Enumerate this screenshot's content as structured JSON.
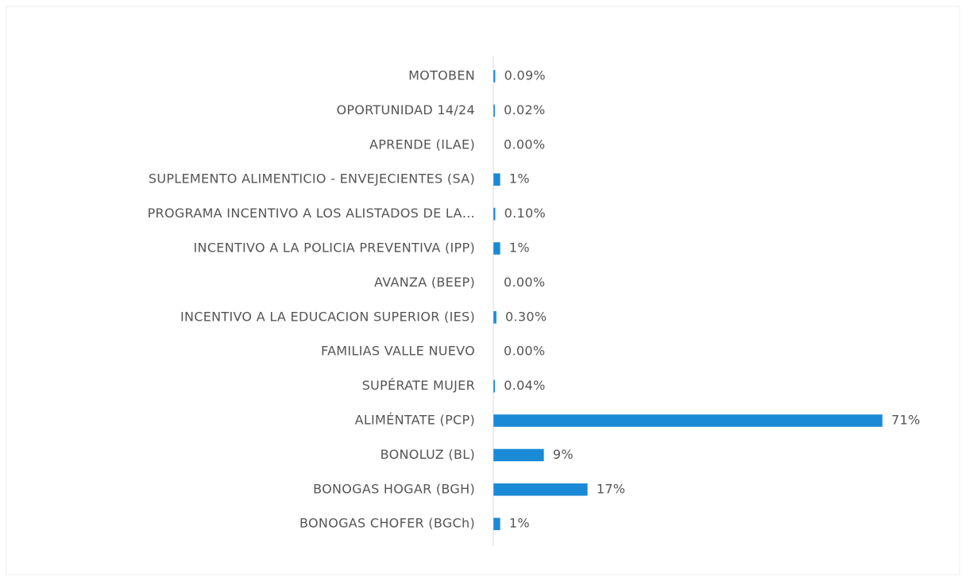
{
  "chart_data": {
    "type": "barh",
    "categories": [
      "MOTOBEN",
      "OPORTUNIDAD 14/24",
      "APRENDE (ILAE)",
      "SUPLEMENTO ALIMENTICIO - ENVEJECIENTES (SA)",
      "PROGRAMA INCENTIVO A LOS ALISTADOS DE LA…",
      "INCENTIVO A LA POLICIA PREVENTIVA (IPP)",
      "AVANZA (BEEP)",
      "INCENTIVO A LA EDUCACION SUPERIOR (IES)",
      "FAMILIAS VALLE NUEVO",
      "SUPÉRATE MUJER",
      "ALIMÉNTATE (PCP)",
      "BONOLUZ (BL)",
      "BONOGAS HOGAR (BGH)",
      "BONOGAS CHOFER (BGCh)"
    ],
    "values": [
      0.09,
      0.02,
      0,
      1,
      0.1,
      1,
      0,
      0.3,
      0,
      0.04,
      71,
      9,
      17,
      1
    ],
    "value_labels": [
      "0.09%",
      "0.02%",
      "0.00%",
      "1%",
      "0.10%",
      "1%",
      "0.00%",
      "0.30%",
      "0.00%",
      "0.04%",
      "71%",
      "9%",
      "17%",
      "1%"
    ],
    "color": "#1a8ad6"
  }
}
